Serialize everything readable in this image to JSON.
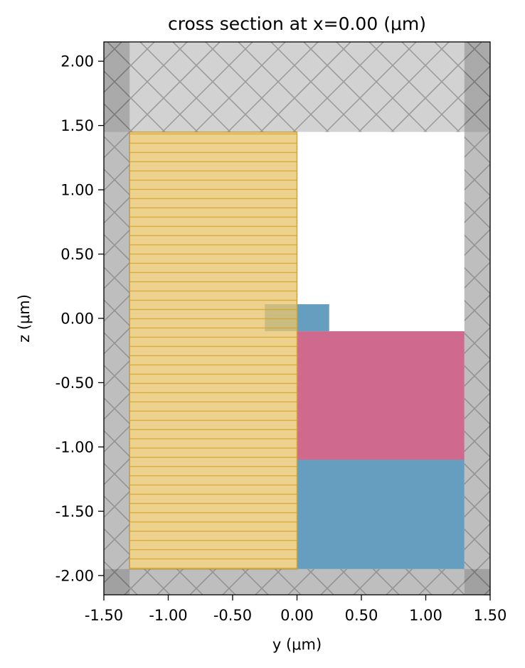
{
  "chart_data": {
    "type": "cross-section",
    "title": "cross section at x=0.00 (μm)",
    "xlabel": "y (μm)",
    "ylabel": "z (μm)",
    "xlim": [
      -1.5,
      1.5
    ],
    "ylim": [
      -2.15,
      2.15
    ],
    "x_ticks": [
      -1.5,
      -1.0,
      -0.5,
      0.0,
      0.5,
      1.0,
      1.5
    ],
    "x_tick_labels": [
      "-1.50",
      "-1.00",
      "-0.50",
      "0.00",
      "0.50",
      "1.00",
      "1.50"
    ],
    "y_ticks": [
      2.0,
      1.5,
      1.0,
      0.5,
      0.0,
      -0.5,
      -1.0,
      -1.5,
      -2.0
    ],
    "y_tick_labels": [
      "2.00",
      "1.50",
      "1.00",
      "0.50",
      "0.00",
      "-0.50",
      "-1.00",
      "-1.50",
      "-2.00"
    ],
    "grid": false,
    "legend": "none",
    "colors": {
      "substrate": "#669ebf",
      "oxide_layer": "#cf6a8e",
      "waveguide_core": "#669ebf",
      "symmetry_region": "#e8c470",
      "symmetry_region_lines": "#d4a62e",
      "pml_region": "#888888",
      "pml_hatch": "#6e6e6e",
      "top_boundary": "#a6a6a6"
    },
    "regions": [
      {
        "name": "substrate",
        "y": [
          0.0,
          1.3
        ],
        "z": [
          -1.95,
          -1.1
        ]
      },
      {
        "name": "oxide_layer",
        "y": [
          0.0,
          1.3
        ],
        "z": [
          -1.1,
          -0.1
        ]
      },
      {
        "name": "waveguide_core",
        "y": [
          -0.25,
          0.25
        ],
        "z": [
          -0.1,
          0.11
        ]
      },
      {
        "name": "symmetry_region",
        "y": [
          -1.3,
          0.0
        ],
        "z": [
          -1.95,
          1.45
        ]
      },
      {
        "name": "pml_top",
        "y": [
          -1.5,
          1.5
        ],
        "z": [
          1.45,
          2.15
        ]
      },
      {
        "name": "pml_bottom",
        "y": [
          -1.5,
          1.5
        ],
        "z": [
          -2.15,
          -1.95
        ]
      },
      {
        "name": "pml_left",
        "y": [
          -1.5,
          -1.3
        ],
        "z": [
          -2.15,
          2.15
        ]
      },
      {
        "name": "pml_right",
        "y": [
          1.3,
          1.5
        ],
        "z": [
          -2.15,
          2.15
        ]
      }
    ]
  }
}
